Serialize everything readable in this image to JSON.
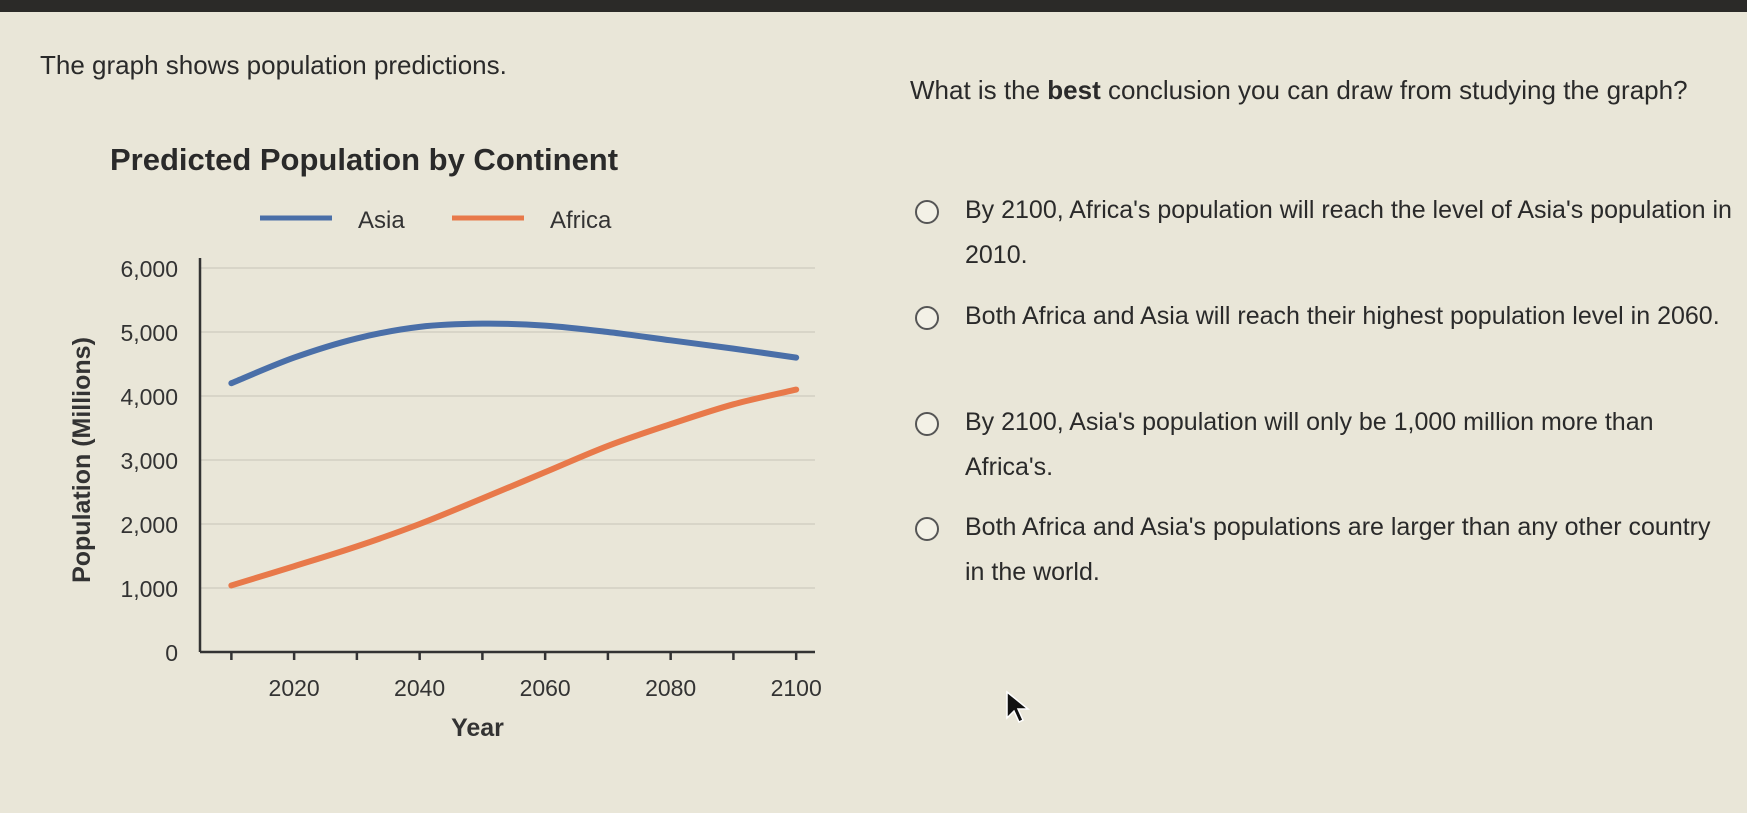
{
  "prompt": "The graph shows population predictions.",
  "question": {
    "prefix": "What is the ",
    "bold": "best",
    "suffix": " conclusion you can draw from studying the graph?"
  },
  "options": [
    "By 2100, Africa's population will reach the level of Asia's population in 2010.",
    "Both Africa and Asia will reach their highest population level in 2060.",
    "By 2100, Asia's population will only be 1,000 million more than Africa's.",
    "Both Africa and Asia's populations are larger than any other country in the world."
  ],
  "chart_data": {
    "type": "line",
    "title": "Predicted Population by Continent",
    "xlabel": "Year",
    "ylabel": "Population (Millions)",
    "x": [
      2010,
      2020,
      2030,
      2040,
      2050,
      2060,
      2070,
      2080,
      2090,
      2100
    ],
    "xticks": [
      2010,
      2020,
      2030,
      2040,
      2050,
      2060,
      2070,
      2080,
      2090,
      2100
    ],
    "xtick_labels": [
      "2020",
      "2040",
      "2060",
      "2080",
      "2100"
    ],
    "xlabel_values": [
      2020,
      2040,
      2060,
      2080,
      2100
    ],
    "yticks": [
      0,
      1000,
      2000,
      3000,
      4000,
      5000,
      6000
    ],
    "ytick_labels": [
      "0",
      "1,000",
      "2,000",
      "3,000",
      "4,000",
      "5,000",
      "6,000"
    ],
    "xlim": [
      2005,
      2103
    ],
    "ylim": [
      0,
      6000
    ],
    "grid": true,
    "legend": "top",
    "series": [
      {
        "name": "Asia",
        "color": "#4a6fa8",
        "values": [
          4200,
          4600,
          4900,
          5080,
          5130,
          5100,
          5000,
          4870,
          4740,
          4600
        ]
      },
      {
        "name": "Africa",
        "color": "#e8794a",
        "values": [
          1040,
          1340,
          1650,
          2000,
          2400,
          2810,
          3220,
          3560,
          3870,
          4100
        ]
      }
    ]
  }
}
